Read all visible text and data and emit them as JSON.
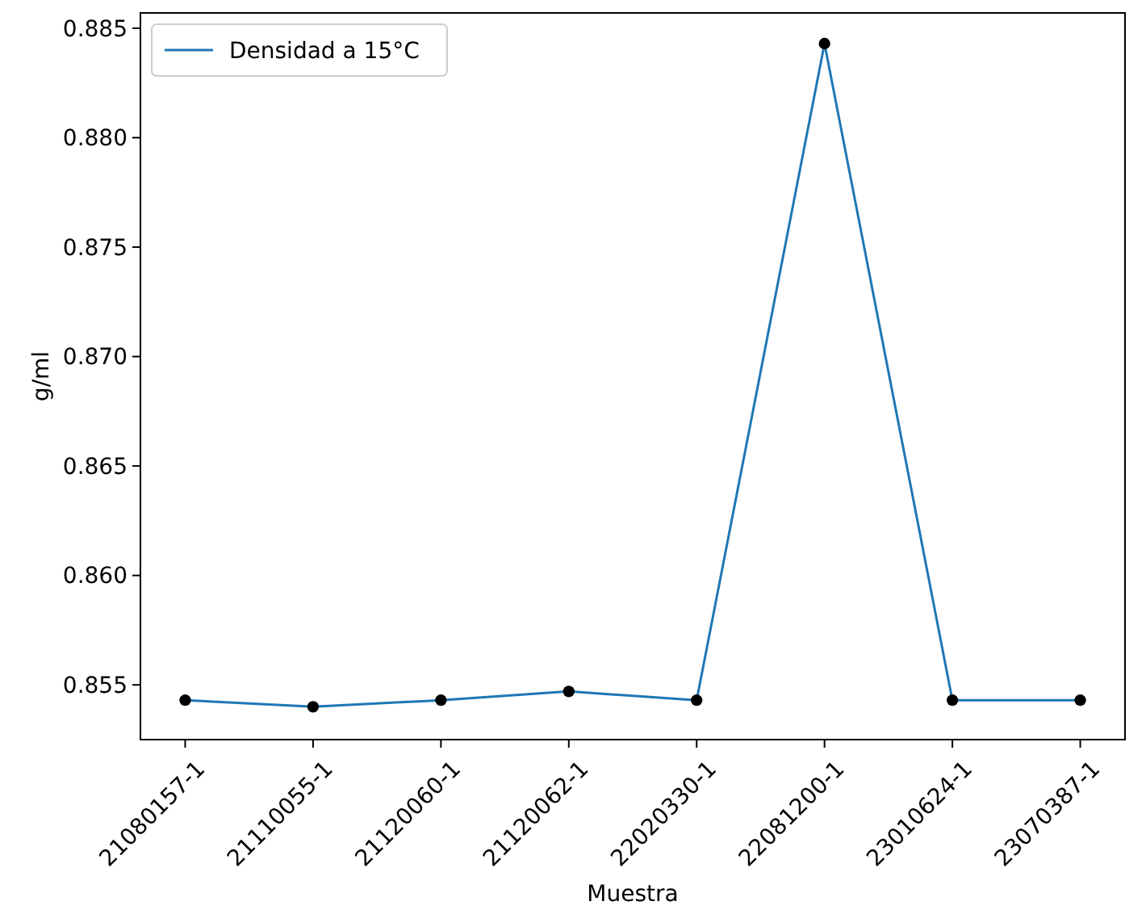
{
  "chart_data": {
    "type": "line",
    "xlabel": "Muestra",
    "ylabel": "g/ml",
    "categories": [
      "21080157-1",
      "21110055-1",
      "21120060-1",
      "21120062-1",
      "22020330-1",
      "22081200-1",
      "23010624-1",
      "23070387-1"
    ],
    "series": [
      {
        "name": "Densidad a 15°C",
        "type": "line",
        "color": "#1f77b4",
        "values": [
          0.8543,
          0.854,
          0.8543,
          0.8547,
          0.8543,
          0.8843,
          0.8543,
          0.8543
        ]
      },
      {
        "type": "scatter",
        "color": "#000000",
        "marker": "circle",
        "values": [
          0.8543,
          0.854,
          0.8543,
          0.8547,
          0.8543,
          0.8843,
          0.8543,
          0.8543
        ]
      }
    ],
    "ylim": [
      0.8525,
      0.8857
    ],
    "yticks": [
      {
        "value": 0.855,
        "label": "0.855"
      },
      {
        "value": 0.86,
        "label": "0.860"
      },
      {
        "value": 0.865,
        "label": "0.865"
      },
      {
        "value": 0.87,
        "label": "0.870"
      },
      {
        "value": 0.875,
        "label": "0.875"
      },
      {
        "value": 0.88,
        "label": "0.880"
      },
      {
        "value": 0.885,
        "label": "0.885"
      }
    ],
    "legend": "top left",
    "grid": false
  }
}
